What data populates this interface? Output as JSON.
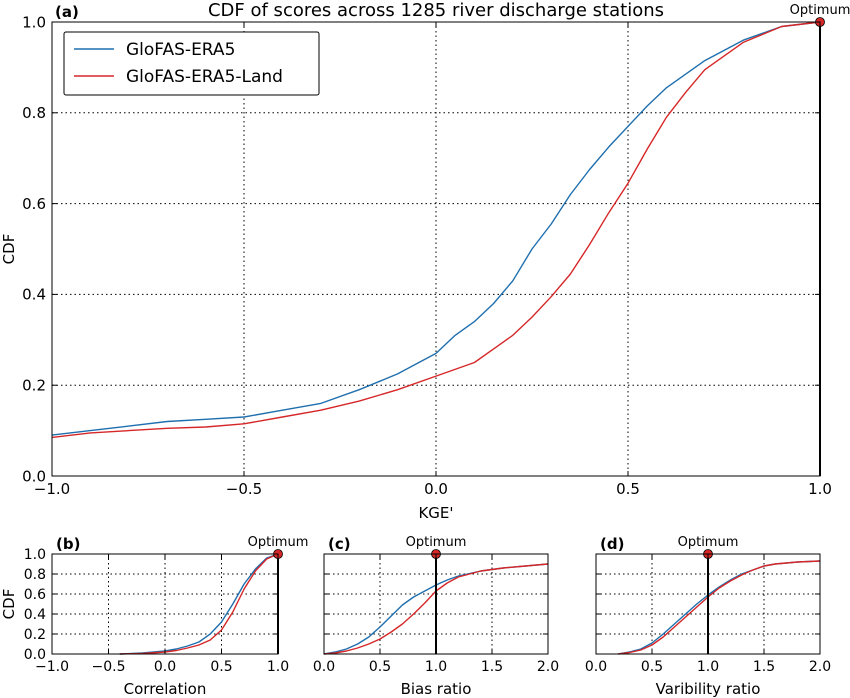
{
  "chart_data": [
    {
      "panel_label": "(a)",
      "type": "line",
      "title": "CDF of scores across 1285 river discharge stations",
      "xlabel": "KGE'",
      "ylabel": "CDF",
      "xlim": [
        -1.0,
        1.0
      ],
      "ylim": [
        0.0,
        1.0
      ],
      "xticks": [
        "−1.0",
        "−0.5",
        "0.0",
        "0.5",
        "1.0"
      ],
      "yticks": [
        "0.0",
        "0.2",
        "0.4",
        "0.6",
        "0.8",
        "1.0"
      ],
      "grid": true,
      "legend": "top-left",
      "optimum": {
        "label": "Optimum",
        "x": 1.0,
        "y": 1.0
      },
      "series": [
        {
          "name": "GloFAS-ERA5",
          "color": "#1f6fae",
          "x": [
            -1.0,
            -0.9,
            -0.8,
            -0.7,
            -0.6,
            -0.5,
            -0.4,
            -0.3,
            -0.2,
            -0.1,
            0.0,
            0.05,
            0.1,
            0.15,
            0.2,
            0.25,
            0.3,
            0.35,
            0.4,
            0.45,
            0.5,
            0.55,
            0.6,
            0.7,
            0.8,
            0.9,
            1.0
          ],
          "y": [
            0.09,
            0.1,
            0.11,
            0.12,
            0.125,
            0.13,
            0.145,
            0.16,
            0.19,
            0.225,
            0.27,
            0.31,
            0.34,
            0.38,
            0.43,
            0.5,
            0.555,
            0.62,
            0.675,
            0.725,
            0.77,
            0.815,
            0.855,
            0.915,
            0.96,
            0.99,
            1.0
          ]
        },
        {
          "name": "GloFAS-ERA5-Land",
          "color": "#d62728",
          "x": [
            -1.0,
            -0.9,
            -0.8,
            -0.7,
            -0.6,
            -0.5,
            -0.4,
            -0.3,
            -0.2,
            -0.1,
            0.0,
            0.1,
            0.15,
            0.2,
            0.25,
            0.3,
            0.35,
            0.4,
            0.45,
            0.5,
            0.55,
            0.6,
            0.65,
            0.7,
            0.8,
            0.9,
            1.0
          ],
          "y": [
            0.085,
            0.095,
            0.1,
            0.105,
            0.108,
            0.115,
            0.13,
            0.145,
            0.165,
            0.19,
            0.22,
            0.25,
            0.28,
            0.31,
            0.35,
            0.395,
            0.445,
            0.51,
            0.58,
            0.645,
            0.72,
            0.79,
            0.845,
            0.895,
            0.955,
            0.99,
            1.0
          ]
        }
      ]
    },
    {
      "panel_label": "(b)",
      "type": "line",
      "xlabel": "Correlation",
      "ylabel": "CDF",
      "xlim": [
        -1.0,
        1.0
      ],
      "ylim": [
        0.0,
        1.0
      ],
      "xticks": [
        "−1.0",
        "−0.5",
        "0.0",
        "0.5",
        "1.0"
      ],
      "yticks": [
        "0.0",
        "0.2",
        "0.4",
        "0.6",
        "0.8",
        "1.0"
      ],
      "grid": true,
      "optimum": {
        "label": "Optimum",
        "x": 1.0,
        "y": 1.0
      },
      "series": [
        {
          "name": "GloFAS-ERA5",
          "color": "#1f6fae",
          "x": [
            -0.4,
            -0.2,
            0.0,
            0.1,
            0.2,
            0.3,
            0.4,
            0.5,
            0.6,
            0.7,
            0.8,
            0.9,
            1.0
          ],
          "y": [
            0.0,
            0.01,
            0.03,
            0.05,
            0.08,
            0.12,
            0.2,
            0.32,
            0.5,
            0.7,
            0.85,
            0.96,
            1.0
          ]
        },
        {
          "name": "GloFAS-ERA5-Land",
          "color": "#d62728",
          "x": [
            -0.4,
            -0.2,
            0.0,
            0.1,
            0.2,
            0.3,
            0.4,
            0.5,
            0.6,
            0.7,
            0.8,
            0.9,
            1.0
          ],
          "y": [
            0.0,
            0.005,
            0.02,
            0.035,
            0.06,
            0.09,
            0.14,
            0.24,
            0.42,
            0.65,
            0.83,
            0.95,
            1.0
          ]
        }
      ]
    },
    {
      "panel_label": "(c)",
      "type": "line",
      "xlabel": "Bias ratio",
      "xlim": [
        0.0,
        2.0
      ],
      "ylim": [
        0.0,
        1.0
      ],
      "xticks": [
        "0.0",
        "0.5",
        "1.0",
        "1.5",
        "2.0"
      ],
      "grid": true,
      "optimum": {
        "label": "Optimum",
        "x": 1.0,
        "y": 1.0
      },
      "series": [
        {
          "name": "GloFAS-ERA5",
          "color": "#1f6fae",
          "x": [
            0.0,
            0.1,
            0.2,
            0.3,
            0.4,
            0.5,
            0.6,
            0.7,
            0.8,
            0.9,
            1.0,
            1.1,
            1.2,
            1.4,
            1.6,
            1.8,
            2.0
          ],
          "y": [
            0.0,
            0.02,
            0.05,
            0.1,
            0.17,
            0.27,
            0.38,
            0.49,
            0.57,
            0.63,
            0.69,
            0.74,
            0.78,
            0.83,
            0.86,
            0.88,
            0.9
          ]
        },
        {
          "name": "GloFAS-ERA5-Land",
          "color": "#d62728",
          "x": [
            0.0,
            0.1,
            0.2,
            0.3,
            0.4,
            0.5,
            0.6,
            0.7,
            0.8,
            0.9,
            1.0,
            1.1,
            1.2,
            1.4,
            1.6,
            1.8,
            2.0
          ],
          "y": [
            0.0,
            0.01,
            0.03,
            0.06,
            0.1,
            0.15,
            0.22,
            0.3,
            0.4,
            0.51,
            0.63,
            0.71,
            0.77,
            0.83,
            0.86,
            0.88,
            0.9
          ]
        }
      ]
    },
    {
      "panel_label": "(d)",
      "type": "line",
      "xlabel": "Varibility ratio",
      "xlim": [
        0.0,
        2.0
      ],
      "ylim": [
        0.0,
        1.0
      ],
      "xticks": [
        "0.0",
        "0.5",
        "1.0",
        "1.5",
        "2.0"
      ],
      "grid": true,
      "optimum": {
        "label": "Optimum",
        "x": 1.0,
        "y": 1.0
      },
      "series": [
        {
          "name": "GloFAS-ERA5",
          "color": "#1f6fae",
          "x": [
            0.2,
            0.3,
            0.4,
            0.5,
            0.6,
            0.7,
            0.8,
            0.9,
            1.0,
            1.1,
            1.2,
            1.3,
            1.4,
            1.5,
            1.6,
            1.8,
            2.0
          ],
          "y": [
            0.0,
            0.02,
            0.05,
            0.11,
            0.2,
            0.3,
            0.4,
            0.5,
            0.59,
            0.67,
            0.74,
            0.8,
            0.84,
            0.88,
            0.9,
            0.92,
            0.93
          ]
        },
        {
          "name": "GloFAS-ERA5-Land",
          "color": "#d62728",
          "x": [
            0.2,
            0.3,
            0.4,
            0.5,
            0.6,
            0.7,
            0.8,
            0.9,
            1.0,
            1.1,
            1.2,
            1.3,
            1.4,
            1.5,
            1.6,
            1.8,
            2.0
          ],
          "y": [
            0.0,
            0.015,
            0.04,
            0.09,
            0.17,
            0.27,
            0.37,
            0.47,
            0.57,
            0.66,
            0.73,
            0.79,
            0.84,
            0.88,
            0.9,
            0.92,
            0.93
          ]
        }
      ]
    }
  ]
}
